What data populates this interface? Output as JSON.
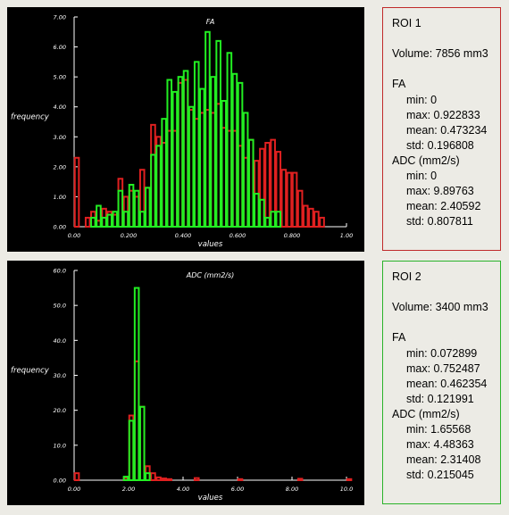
{
  "colors": {
    "roi1": "#e02020",
    "roi2": "#22ee22",
    "roi1_border": "#c02a2a",
    "roi2_border": "#2ab32a"
  },
  "fa_chart": {
    "chart_data": {
      "type": "bar",
      "title": "FA",
      "xlabel": "values",
      "ylabel": "frequency",
      "xlim": [
        0,
        1.0
      ],
      "ylim": [
        0,
        7.0
      ],
      "xticks": [
        "0.00",
        "0.200",
        "0.400",
        "0.600",
        "0.800",
        "1.00"
      ],
      "xtick_values": [
        0,
        0.2,
        0.4,
        0.6,
        0.8,
        1.0
      ],
      "yticks": [
        "0.00",
        "1.00",
        "2.00",
        "3.00",
        "4.00",
        "5.00",
        "6.00",
        "7.00"
      ],
      "ytick_values": [
        0,
        1,
        2,
        3,
        4,
        5,
        6,
        7
      ],
      "bin_width": 0.02,
      "series": [
        {
          "name": "ROI 1",
          "x": [
            0.0,
            0.04,
            0.06,
            0.08,
            0.1,
            0.12,
            0.14,
            0.16,
            0.18,
            0.2,
            0.22,
            0.24,
            0.26,
            0.28,
            0.3,
            0.32,
            0.34,
            0.36,
            0.38,
            0.4,
            0.42,
            0.44,
            0.46,
            0.48,
            0.5,
            0.52,
            0.54,
            0.56,
            0.58,
            0.6,
            0.62,
            0.64,
            0.66,
            0.68,
            0.7,
            0.72,
            0.74,
            0.76,
            0.78,
            0.8,
            0.82,
            0.84,
            0.86,
            0.88,
            0.9
          ],
          "values": [
            2.3,
            0.3,
            0.5,
            0.2,
            0.6,
            0.5,
            0.4,
            1.6,
            1.0,
            1.2,
            1.0,
            1.9,
            1.3,
            3.4,
            3.0,
            2.8,
            3.2,
            3.2,
            4.8,
            4.9,
            3.9,
            3.6,
            3.8,
            3.9,
            3.8,
            4.1,
            3.3,
            3.2,
            3.2,
            2.7,
            2.3,
            2.9,
            2.2,
            2.6,
            2.8,
            2.9,
            2.5,
            1.9,
            1.8,
            1.8,
            1.2,
            0.7,
            0.6,
            0.5,
            0.3
          ]
        },
        {
          "name": "ROI 2",
          "x": [
            0.06,
            0.08,
            0.1,
            0.12,
            0.14,
            0.16,
            0.18,
            0.2,
            0.22,
            0.24,
            0.26,
            0.28,
            0.3,
            0.32,
            0.34,
            0.36,
            0.38,
            0.4,
            0.42,
            0.44,
            0.46,
            0.48,
            0.5,
            0.52,
            0.54,
            0.56,
            0.58,
            0.6,
            0.62,
            0.64,
            0.66,
            0.68,
            0.7,
            0.72,
            0.74
          ],
          "values": [
            0.3,
            0.7,
            0.3,
            0.4,
            0.5,
            1.2,
            0.5,
            1.4,
            1.2,
            0.5,
            1.3,
            2.4,
            2.7,
            3.6,
            4.9,
            4.5,
            5.0,
            5.2,
            4.0,
            5.5,
            4.6,
            6.5,
            5.0,
            6.2,
            4.2,
            5.8,
            5.1,
            4.8,
            3.8,
            2.9,
            1.1,
            0.9,
            0.3,
            0.5,
            0.5
          ]
        }
      ]
    }
  },
  "adc_chart": {
    "chart_data": {
      "type": "bar",
      "title": "ADC (mm2/s)",
      "xlabel": "values",
      "ylabel": "frequency",
      "xlim": [
        0,
        10.0
      ],
      "ylim": [
        0,
        60.0
      ],
      "xticks": [
        "0.00",
        "2.00",
        "4.00",
        "6.00",
        "8.00",
        "10.0"
      ],
      "xtick_values": [
        0,
        2,
        4,
        6,
        8,
        10
      ],
      "yticks": [
        "0.00",
        "10.0",
        "20.0",
        "30.0",
        "40.0",
        "50.0",
        "60.0"
      ],
      "ytick_values": [
        0,
        10,
        20,
        30,
        40,
        50,
        60
      ],
      "bin_width": 0.2,
      "series": [
        {
          "name": "ROI 1",
          "x": [
            0.0,
            1.8,
            2.0,
            2.2,
            2.4,
            2.6,
            2.8,
            3.0,
            3.2,
            3.4,
            4.4,
            6.0,
            8.2,
            10.0
          ],
          "values": [
            2.0,
            0.6,
            18.5,
            34.0,
            21.0,
            4.0,
            2.0,
            0.8,
            0.5,
            0.3,
            0.6,
            0.3,
            0.4,
            0.3
          ]
        },
        {
          "name": "ROI 2",
          "x": [
            1.8,
            2.0,
            2.2,
            2.4,
            2.6
          ],
          "values": [
            1.0,
            17.0,
            55.0,
            21.0,
            2.0
          ]
        }
      ]
    }
  },
  "roi1": {
    "title": "ROI 1",
    "volume": "Volume: 7856 mm3",
    "fa_header": "FA",
    "fa_min": "min: 0",
    "fa_max": "max: 0.922833",
    "fa_mean": "mean: 0.473234",
    "fa_std": "std: 0.196808",
    "adc_header": "ADC (mm2/s)",
    "adc_min": "min: 0",
    "adc_max": "max: 9.89763",
    "adc_mean": "mean: 2.40592",
    "adc_std": "std: 0.807811"
  },
  "roi2": {
    "title": "ROI 2",
    "volume": "Volume: 3400 mm3",
    "fa_header": "FA",
    "fa_min": "min: 0.072899",
    "fa_max": "max: 0.752487",
    "fa_mean": "mean: 0.462354",
    "fa_std": "std: 0.121991",
    "adc_header": "ADC (mm2/s)",
    "adc_min": "min: 1.65568",
    "adc_max": "max: 4.48363",
    "adc_mean": "mean: 2.31408",
    "adc_std": "std: 0.215045"
  }
}
